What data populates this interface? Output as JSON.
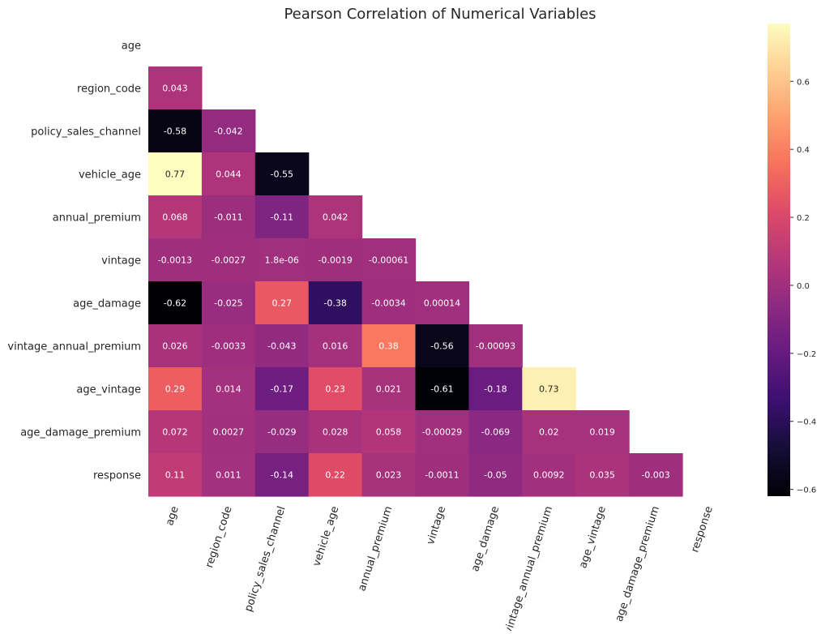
{
  "chart_data": {
    "type": "heatmap",
    "title": "Pearson Correlation of Numerical Variables",
    "labels": [
      "age",
      "region_code",
      "policy_sales_channel",
      "vehicle_age",
      "annual_premium",
      "vintage",
      "age_damage",
      "vintage_annual_premium",
      "age_vintage",
      "age_damage_premium",
      "response"
    ],
    "mask": "upper-triangle-including-diagonal",
    "colormap": "magma",
    "vmin": -0.62,
    "vmax": 0.77,
    "colorbar_ticks": [
      "0.6",
      "0.4",
      "0.2",
      "0.0",
      "−0.2",
      "−0.4",
      "−0.6"
    ],
    "colorbar_tick_values": [
      0.6,
      0.4,
      0.2,
      0.0,
      -0.2,
      -0.4,
      -0.6
    ],
    "cells": [
      [],
      [
        "0.043"
      ],
      [
        "-0.58",
        "-0.042"
      ],
      [
        "0.77",
        "0.044",
        "-0.55"
      ],
      [
        "0.068",
        "-0.011",
        "-0.11",
        "0.042"
      ],
      [
        "-0.0013",
        "-0.0027",
        "1.8e-06",
        "-0.0019",
        "-0.00061"
      ],
      [
        "-0.62",
        "-0.025",
        "0.27",
        "-0.38",
        "-0.0034",
        "0.00014"
      ],
      [
        "0.026",
        "-0.0033",
        "-0.043",
        "0.016",
        "0.38",
        "-0.56",
        "-0.00093"
      ],
      [
        "0.29",
        "0.014",
        "-0.17",
        "0.23",
        "0.021",
        "-0.61",
        "-0.18",
        "0.73"
      ],
      [
        "0.072",
        "0.0027",
        "-0.029",
        "0.028",
        "0.058",
        "-0.00029",
        "-0.069",
        "0.02",
        "0.019"
      ],
      [
        "0.11",
        "0.011",
        "-0.14",
        "0.22",
        "0.023",
        "-0.0011",
        "-0.05",
        "0.0092",
        "0.035",
        "-0.003"
      ]
    ]
  }
}
